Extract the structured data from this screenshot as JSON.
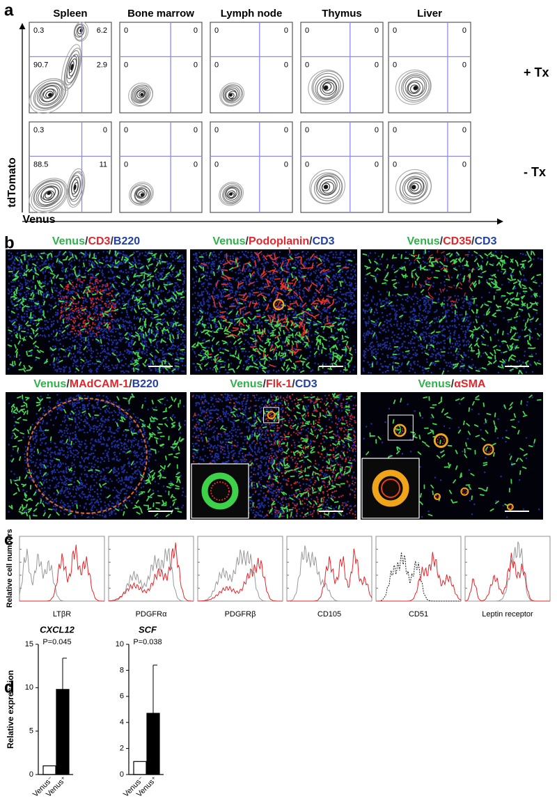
{
  "figure": {
    "panel_a": {
      "label": "a",
      "columns": [
        "Spleen",
        "Bone marrow",
        "Lymph node",
        "Thymus",
        "Liver"
      ],
      "rows": [
        "+ Tx",
        "- Tx"
      ],
      "y_axis": "tdTomato",
      "x_axis": "Venus",
      "quadrants": [
        [
          [
            "0.3",
            "6.2",
            "90.7",
            "2.9"
          ],
          [
            "0",
            "0",
            "0",
            "0"
          ],
          [
            "0",
            "0",
            "0",
            "0"
          ],
          [
            "0",
            "0",
            "0",
            "0"
          ],
          [
            "0",
            "0",
            "0",
            "0"
          ]
        ],
        [
          [
            "0.3",
            "0",
            "88.5",
            "11"
          ],
          [
            "0",
            "0",
            "0",
            "0"
          ],
          [
            "0",
            "0",
            "0",
            "0"
          ],
          [
            "0",
            "0",
            "0",
            "0"
          ],
          [
            "0",
            "0",
            "0",
            "0"
          ]
        ]
      ]
    },
    "panel_b": {
      "label": "b",
      "images": [
        {
          "title": [
            {
              "text": "Venus",
              "color": "#2fb14a"
            },
            {
              "text": "/",
              "color": "#333333"
            },
            {
              "text": "CD3",
              "color": "#e2262b"
            },
            {
              "text": "/",
              "color": "#333333"
            },
            {
              "text": "B220",
              "color": "#2340a6"
            }
          ]
        },
        {
          "title": [
            {
              "text": "Venus",
              "color": "#2fb14a"
            },
            {
              "text": "/",
              "color": "#333333"
            },
            {
              "text": "Podoplanin",
              "color": "#e2262b"
            },
            {
              "text": "/",
              "color": "#333333"
            },
            {
              "text": "CD3",
              "color": "#2340a6"
            }
          ]
        },
        {
          "title": [
            {
              "text": "Venus",
              "color": "#2fb14a"
            },
            {
              "text": "/",
              "color": "#333333"
            },
            {
              "text": "CD35",
              "color": "#e2262b"
            },
            {
              "text": "/",
              "color": "#333333"
            },
            {
              "text": "CD3",
              "color": "#2340a6"
            }
          ]
        },
        {
          "title": [
            {
              "text": "Venus",
              "color": "#2fb14a"
            },
            {
              "text": "/",
              "color": "#333333"
            },
            {
              "text": "MAdCAM-1",
              "color": "#e2262b"
            },
            {
              "text": "/",
              "color": "#333333"
            },
            {
              "text": "B220",
              "color": "#2340a6"
            }
          ]
        },
        {
          "title": [
            {
              "text": "Venus",
              "color": "#2fb14a"
            },
            {
              "text": "/",
              "color": "#333333"
            },
            {
              "text": "Flk-1",
              "color": "#e2262b"
            },
            {
              "text": "/",
              "color": "#333333"
            },
            {
              "text": "CD3",
              "color": "#2340a6"
            }
          ]
        },
        {
          "title": [
            {
              "text": "Venus",
              "color": "#2fb14a"
            },
            {
              "text": "/",
              "color": "#333333"
            },
            {
              "text": "αSMA",
              "color": "#e2262b"
            }
          ]
        }
      ]
    },
    "panel_c": {
      "label": "c",
      "y_axis": "Relative cell numbers",
      "markers": [
        "LTβR",
        "PDGFRα",
        "PDGFRβ",
        "CD105",
        "CD51",
        "Leptin receptor"
      ]
    },
    "panel_d": {
      "label": "d"
    }
  },
  "chart_data": [
    {
      "type": "bar",
      "title": "CXCL12",
      "annotation": "P=0.045",
      "ylabel": "Relative expression",
      "categories": [
        "Venus⁻",
        "Venus⁺"
      ],
      "values": [
        1,
        9.8
      ],
      "errors": [
        null,
        3.6
      ],
      "colors": [
        "#ffffff",
        "#000000"
      ],
      "ylim": [
        0,
        15
      ],
      "yticks": [
        0,
        5,
        10,
        15
      ]
    },
    {
      "type": "bar",
      "title": "SCF",
      "annotation": "P=0.038",
      "categories": [
        "Venus⁻",
        "Venus⁺"
      ],
      "values": [
        1,
        4.7
      ],
      "errors": [
        null,
        3.7
      ],
      "colors": [
        "#ffffff",
        "#000000"
      ],
      "ylim": [
        0,
        10
      ],
      "yticks": [
        0,
        2,
        4,
        6,
        8,
        10
      ]
    }
  ]
}
